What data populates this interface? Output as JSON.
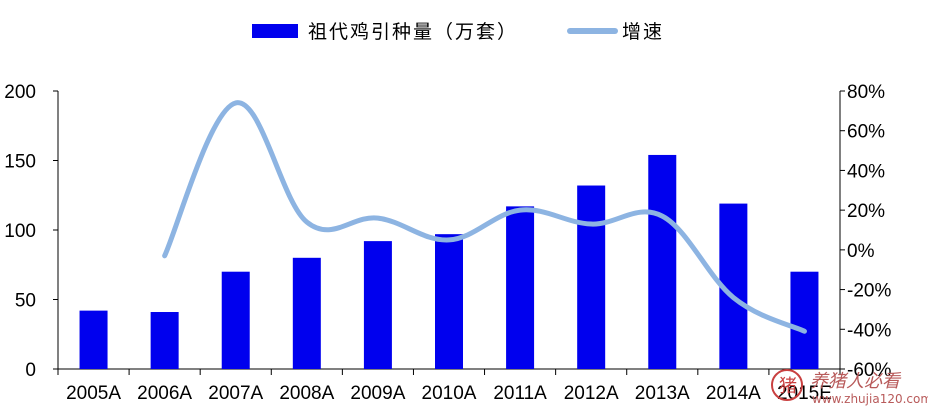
{
  "chart_data": {
    "type": "bar",
    "categories": [
      "2005A",
      "2006A",
      "2007A",
      "2008A",
      "2009A",
      "2010A",
      "2011A",
      "2012A",
      "2013A",
      "2014A",
      "2015E"
    ],
    "series": [
      {
        "name": "祖代鸡引种量（万套）",
        "type": "bar",
        "axis": "left",
        "color": "#0000ee",
        "values": [
          42,
          41,
          70,
          80,
          92,
          97,
          117,
          132,
          154,
          119,
          70
        ]
      },
      {
        "name": "增速",
        "type": "line",
        "axis": "right",
        "color": "#8db4e2",
        "values": [
          null,
          -3,
          74,
          14,
          16,
          5,
          20,
          13,
          17,
          -24,
          -41
        ]
      }
    ],
    "y_left": {
      "ylim": [
        0,
        200
      ],
      "ticks": [
        "0",
        "50",
        "100",
        "150",
        "200"
      ]
    },
    "y_right": {
      "ylim": [
        -60,
        80
      ],
      "ticks": [
        "-60%",
        "-40%",
        "-20%",
        "0%",
        "20%",
        "40%",
        "60%",
        "80%"
      ]
    },
    "legend_position": "top",
    "grid": false
  },
  "watermark": {
    "text": "养猪人必看",
    "url": "www.zhujia120.com",
    "color": "#b85a5a"
  }
}
